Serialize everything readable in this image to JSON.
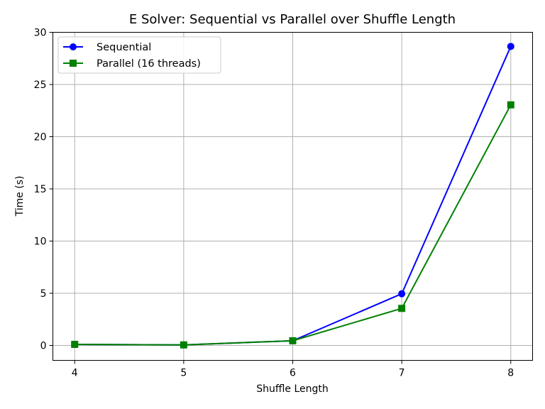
{
  "chart_data": {
    "type": "line",
    "title": "E Solver: Sequential vs Parallel over Shuffle Length",
    "xlabel": "Shuffle Length",
    "ylabel": "Time (s)",
    "x": [
      4,
      5,
      6,
      7,
      8
    ],
    "xlim": [
      3.8,
      8.2
    ],
    "ylim": [
      -1.43,
      30
    ],
    "xticks": [
      4,
      5,
      6,
      7,
      8
    ],
    "yticks": [
      0,
      5,
      10,
      15,
      20,
      25,
      30
    ],
    "grid": true,
    "legend_position": "upper-left",
    "series": [
      {
        "name": "Sequential",
        "values": [
          0.1,
          0.05,
          0.45,
          4.95,
          28.65
        ],
        "color": "#0000ff",
        "marker": "circle"
      },
      {
        "name": "Parallel (16 threads)",
        "values": [
          0.1,
          0.05,
          0.45,
          3.55,
          23.05
        ],
        "color": "#008000",
        "marker": "square"
      }
    ]
  }
}
